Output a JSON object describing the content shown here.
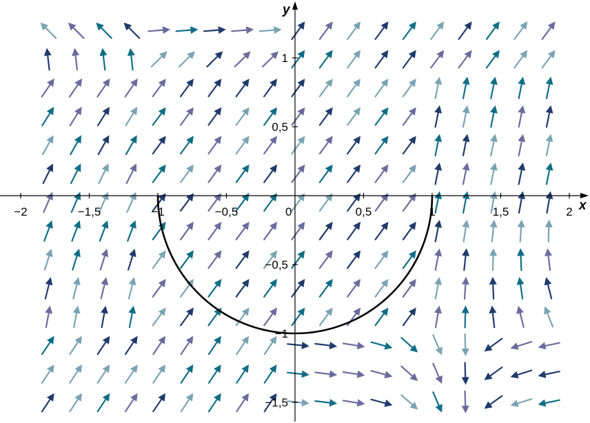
{
  "chart_data": {
    "type": "vector_field",
    "title": "",
    "xlabel": "x",
    "ylabel": "y",
    "xlim": [
      -2,
      2
    ],
    "ylim": [
      -1.6,
      1.3
    ],
    "x_ticks": [
      {
        "value": -2,
        "label": "−2"
      },
      {
        "value": -1.5,
        "label": "−1,5"
      },
      {
        "value": -1,
        "label": "−1"
      },
      {
        "value": -0.5,
        "label": "−0,5"
      },
      {
        "value": 0,
        "label": "0"
      },
      {
        "value": 0.5,
        "label": "0,5"
      },
      {
        "value": 1,
        "label": "1"
      },
      {
        "value": 1.5,
        "label": "1,5"
      },
      {
        "value": 2,
        "label": "2"
      }
    ],
    "y_ticks": [
      {
        "value": 1,
        "label": "1"
      },
      {
        "value": 0.5,
        "label": "0,5"
      },
      {
        "value": -0.5,
        "label": "−0,5"
      },
      {
        "value": -1,
        "label": "−1"
      },
      {
        "value": -1.5,
        "label": "−1,5"
      }
    ],
    "grid": false,
    "grid_x_range": [
      -1.8,
      1.85
    ],
    "grid_y_range": [
      -1.5,
      1.2
    ],
    "grid_cols": 19,
    "grid_rows": 14,
    "curve": {
      "type": "semicircle",
      "center": [
        0,
        0
      ],
      "radius": 1,
      "half": "lower"
    },
    "colors": [
      "#1f3a6b",
      "#6b6b9e",
      "#0f6e86",
      "#7aa3b3"
    ]
  }
}
